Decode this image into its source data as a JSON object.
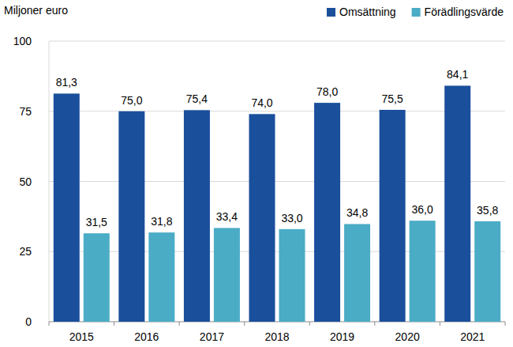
{
  "chart_data": {
    "type": "bar",
    "ylabel": "Miljoner euro",
    "categories": [
      "2015",
      "2016",
      "2017",
      "2018",
      "2019",
      "2020",
      "2021"
    ],
    "series": [
      {
        "name": "Omsättning",
        "color": "#1a4f9c",
        "values": [
          81.3,
          75.0,
          75.4,
          74.0,
          78.0,
          75.5,
          84.1
        ],
        "value_labels": [
          "81,3",
          "75,0",
          "75,4",
          "74,0",
          "78,0",
          "75,5",
          "84,1"
        ]
      },
      {
        "name": "Förädlingsvärde",
        "color": "#4bacc6",
        "values": [
          31.5,
          31.8,
          33.4,
          33.0,
          34.8,
          36.0,
          35.8
        ],
        "value_labels": [
          "31,5",
          "31,8",
          "33,4",
          "33,0",
          "34,8",
          "36,0",
          "35,8"
        ]
      }
    ],
    "ylim": [
      0,
      100
    ],
    "yticks": [
      0,
      25,
      50,
      75,
      100
    ],
    "grid": true,
    "legend": "top-right",
    "data_labels": true
  }
}
